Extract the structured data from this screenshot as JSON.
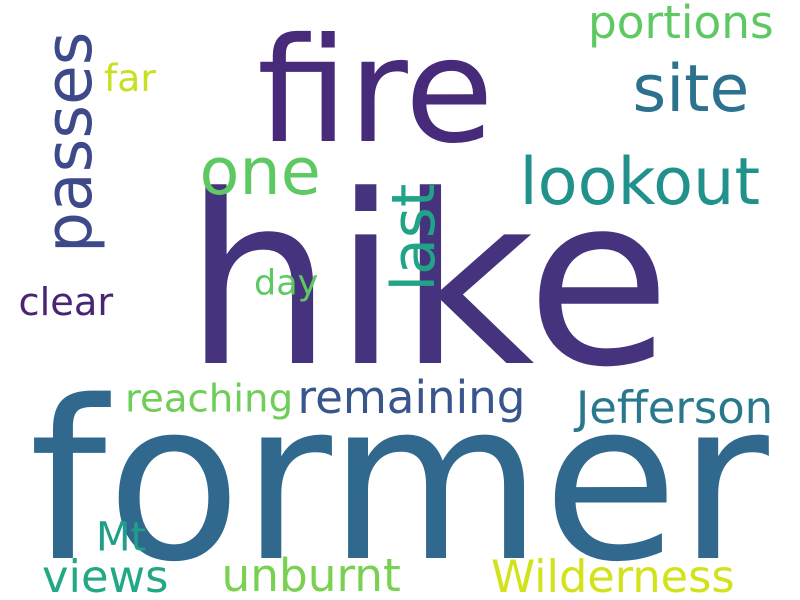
{
  "wordcloud": {
    "words": [
      {
        "id": "hike",
        "text": "hike",
        "color": "#46337e",
        "rotate": false
      },
      {
        "id": "former",
        "text": "former",
        "color": "#31688e",
        "rotate": false
      },
      {
        "id": "fire",
        "text": "fire",
        "color": "#472a7a",
        "rotate": false
      },
      {
        "id": "lookout",
        "text": "lookout",
        "color": "#21918c",
        "rotate": false
      },
      {
        "id": "site",
        "text": "site",
        "color": "#2c728e",
        "rotate": false
      },
      {
        "id": "passes",
        "text": "passes",
        "color": "#3e4989",
        "rotate": true
      },
      {
        "id": "last",
        "text": "last",
        "color": "#20a386",
        "rotate": true
      },
      {
        "id": "one",
        "text": "one",
        "color": "#5ec962",
        "rotate": false
      },
      {
        "id": "remaining",
        "text": "remaining",
        "color": "#39568c",
        "rotate": false
      },
      {
        "id": "jefferson",
        "text": "Jefferson",
        "color": "#2a788e",
        "rotate": false
      },
      {
        "id": "wilderness",
        "text": "Wilderness",
        "color": "#d2e21b",
        "rotate": false
      },
      {
        "id": "unburnt",
        "text": "unburnt",
        "color": "#7ad151",
        "rotate": false
      },
      {
        "id": "portions",
        "text": "portions",
        "color": "#5ec962",
        "rotate": false
      },
      {
        "id": "views",
        "text": "views",
        "color": "#22a884",
        "rotate": false
      },
      {
        "id": "mt",
        "text": "Mt",
        "color": "#1f9e89",
        "rotate": false
      },
      {
        "id": "reaching",
        "text": "reaching",
        "color": "#6ece58",
        "rotate": false
      },
      {
        "id": "far",
        "text": "far",
        "color": "#c8e020",
        "rotate": false
      },
      {
        "id": "day",
        "text": "day",
        "color": "#5ec962",
        "rotate": false
      },
      {
        "id": "clear",
        "text": "clear",
        "color": "#482475",
        "rotate": false
      }
    ]
  }
}
